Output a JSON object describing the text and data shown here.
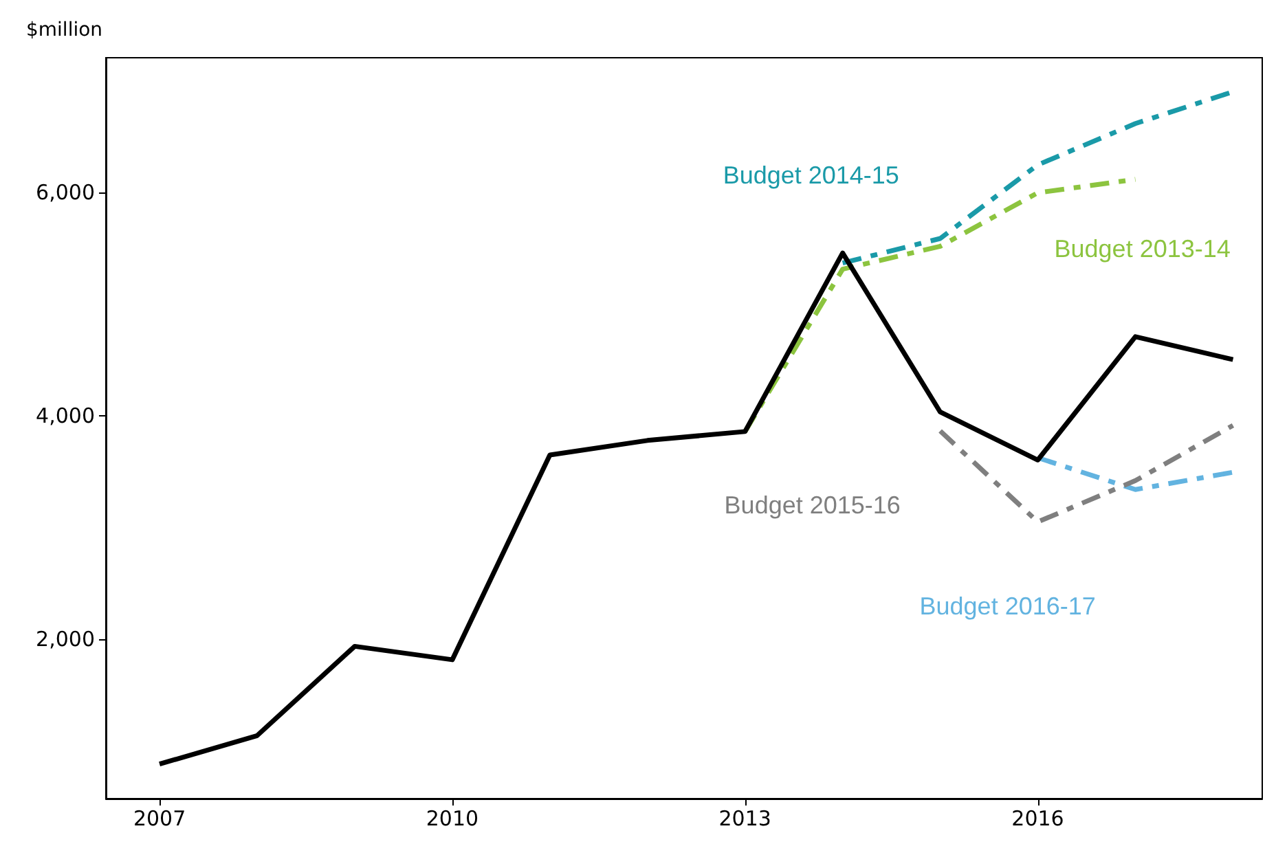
{
  "chart_data": {
    "type": "line",
    "ylabel": "$million",
    "xlim": [
      2006.45,
      2018.3
    ],
    "xticks": [
      2007,
      2010,
      2013,
      2016
    ],
    "ylim": [
      570,
      7210
    ],
    "yticks": [
      {
        "value": 2000,
        "label": "2,000"
      },
      {
        "value": 4000,
        "label": "4,000"
      },
      {
        "value": 6000,
        "label": "6,000"
      }
    ],
    "grid": false,
    "legend": false,
    "marker": "none",
    "series": [
      {
        "color": "#000000",
        "line_style": "solid",
        "x": [
          2007,
          2008,
          2009,
          2010,
          2011,
          2012,
          2013,
          2014,
          2015,
          2016,
          2017,
          2018
        ],
        "values": [
          880,
          1135,
          1935,
          1815,
          3650,
          3780,
          3860,
          5460,
          4035,
          3605,
          4710,
          4505
        ]
      },
      {
        "name": "Budget 2013-14",
        "color": "#8cc43f",
        "line_style": "dashed",
        "x": [
          2013,
          2014,
          2015,
          2016,
          2017
        ],
        "values": [
          3860,
          5315,
          5520,
          6000,
          6120
        ]
      },
      {
        "name": "Budget 2014-15",
        "color": "#1a9aa8",
        "line_style": "dashed",
        "x": [
          2014,
          2015,
          2016,
          2017,
          2018
        ],
        "values": [
          5370,
          5590,
          6250,
          6620,
          6905
        ]
      },
      {
        "name": "Budget 2015-16",
        "color": "#7f7f7f",
        "line_style": "dashed",
        "x": [
          2015,
          2016,
          2017,
          2018
        ],
        "values": [
          3865,
          3050,
          3420,
          3915
        ]
      },
      {
        "name": "Budget 2016-17",
        "color": "#62b3e0",
        "line_style": "dashed",
        "x": [
          2016,
          2017,
          2018
        ],
        "values": [
          3625,
          3340,
          3495
        ]
      }
    ]
  }
}
